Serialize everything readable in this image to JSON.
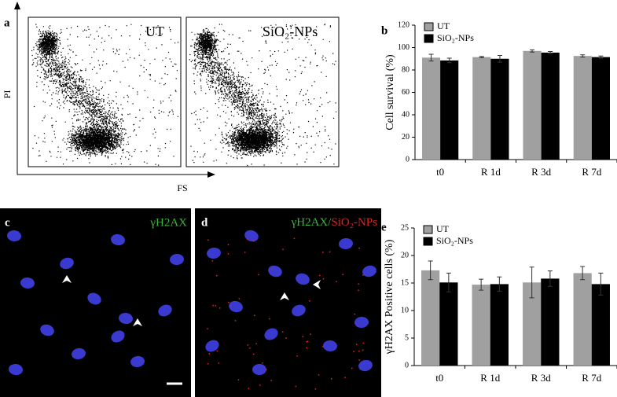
{
  "panels": {
    "a": {
      "label": "a",
      "left_label": "UT",
      "right_label": "SiO₂-NPs",
      "y_axis": "PI",
      "x_axis": "FS"
    },
    "b": {
      "label": "b"
    },
    "c": {
      "label": "c",
      "stain": "γH2AX"
    },
    "d": {
      "label": "d",
      "stain": "γH2AX/",
      "particles": "SiO₂-NPs"
    },
    "e": {
      "label": "e"
    }
  },
  "chart_data": [
    {
      "type": "bar",
      "ylabel": "Cell survival (%)",
      "categories": [
        "t0",
        "R 1d",
        "R 3d",
        "R 7d"
      ],
      "series": [
        {
          "name": "UT",
          "color": "#a0a0a0",
          "values": [
            91,
            91.5,
            97,
            92.5
          ],
          "errors": [
            3,
            0.5,
            1,
            1
          ]
        },
        {
          "name": "SiO₂-NPs",
          "color": "#000000",
          "values": [
            88.5,
            90,
            95.5,
            91.5
          ],
          "errors": [
            2,
            3,
            1,
            1
          ]
        }
      ],
      "ylim": [
        0,
        120
      ],
      "yticks": [
        0,
        20,
        40,
        60,
        80,
        100,
        120
      ],
      "grid": false,
      "legend": "top-left"
    },
    {
      "type": "bar",
      "ylabel": "γH2AX Positive cells (%)",
      "categories": [
        "t0",
        "R 1d",
        "R 3d",
        "R 7d"
      ],
      "series": [
        {
          "name": "UT",
          "color": "#a0a0a0",
          "values": [
            17.3,
            14.7,
            15.1,
            16.8
          ],
          "errors": [
            1.7,
            1,
            2.8,
            1.2
          ]
        },
        {
          "name": "SiO₂-NPs",
          "color": "#000000",
          "values": [
            15.1,
            14.8,
            15.8,
            14.8
          ],
          "errors": [
            1.7,
            1.3,
            1.4,
            2
          ]
        }
      ],
      "ylim": [
        0,
        25
      ],
      "yticks": [
        0,
        5,
        10,
        15,
        20,
        25
      ],
      "grid": false,
      "legend": "top-left"
    }
  ]
}
